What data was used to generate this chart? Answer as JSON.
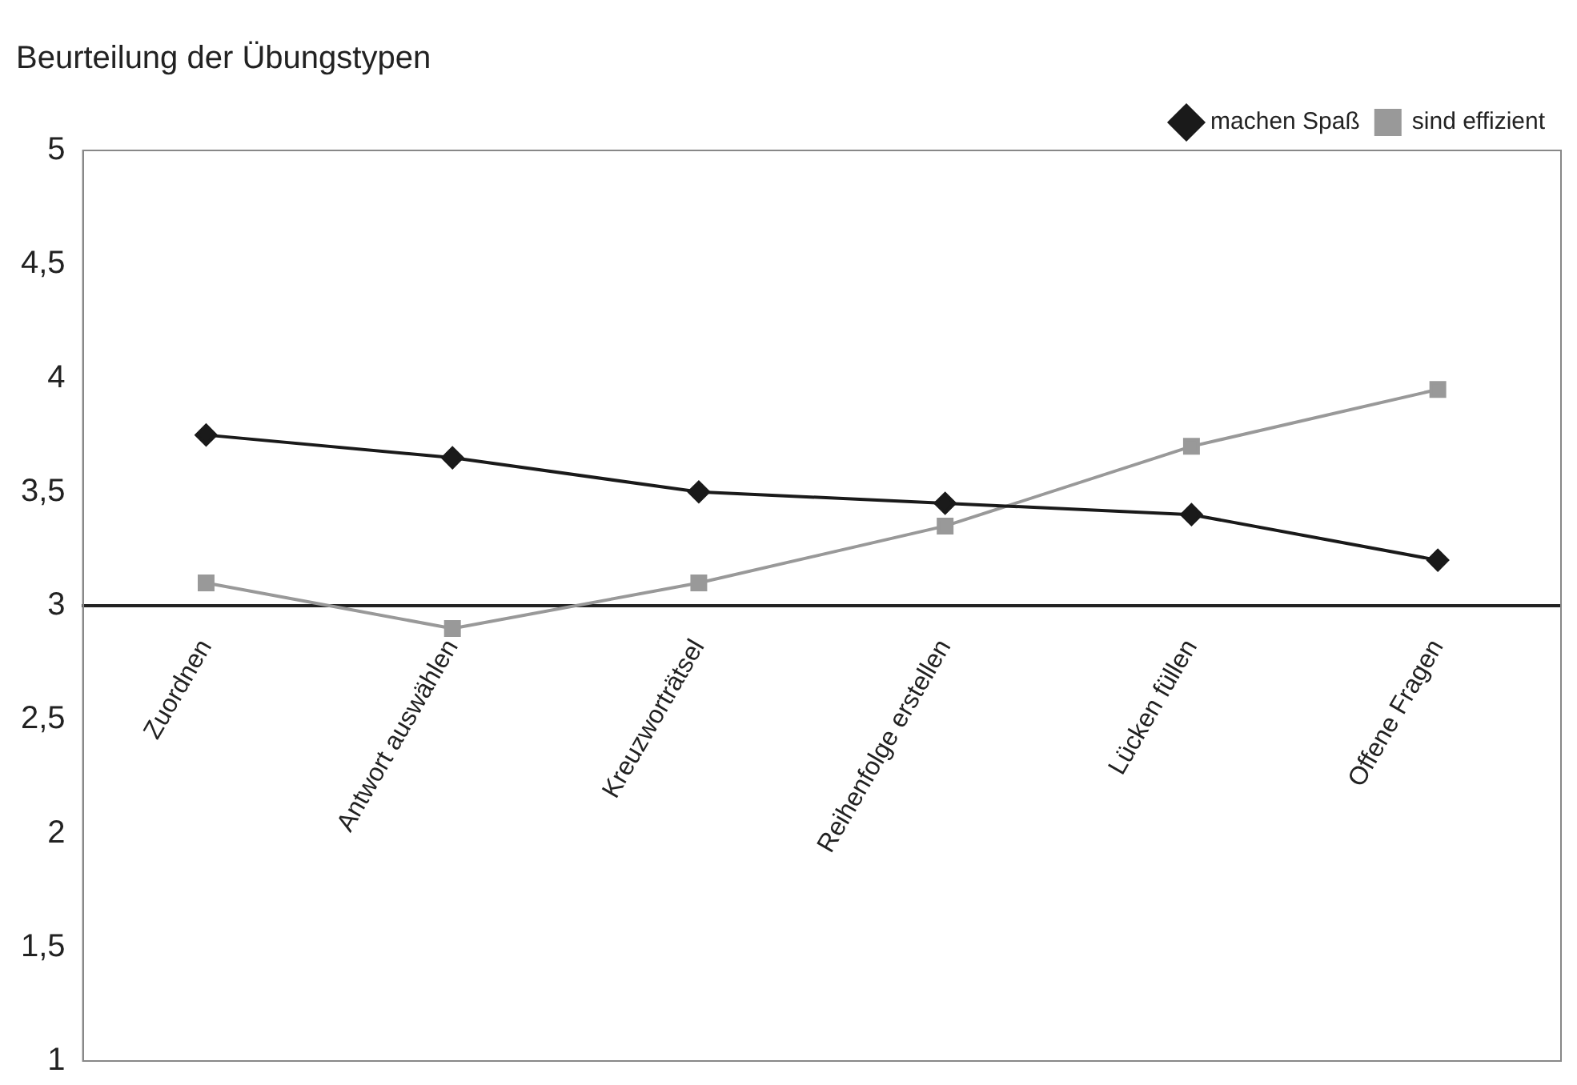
{
  "chart_data": {
    "type": "line",
    "title": "Beurteilung der Übungstypen",
    "categories": [
      "Zuordnen",
      "Antwort auswählen",
      "Kreuzworträtsel",
      "Reihenfolge erstellen",
      "Lücken füllen",
      "Offene Fragen"
    ],
    "series": [
      {
        "name": "machen Spaß",
        "color": "#1a1a1a",
        "marker": "diamond",
        "values": [
          3.75,
          3.65,
          3.5,
          3.45,
          3.4,
          3.2
        ]
      },
      {
        "name": "sind effizient",
        "color": "#999999",
        "marker": "square",
        "values": [
          3.1,
          2.9,
          3.1,
          3.35,
          3.7,
          3.95
        ]
      }
    ],
    "ylim": [
      1,
      5
    ],
    "yticks": [
      1,
      {
        "value": 1.5,
        "label": "1,5"
      },
      2,
      {
        "value": 2.5,
        "label": "2,5"
      },
      3,
      {
        "value": 3.5,
        "label": "3,5"
      },
      4,
      {
        "value": 4.5,
        "label": "4,5"
      },
      5
    ],
    "grid": false,
    "legend": "top right",
    "line_style": "solid"
  }
}
